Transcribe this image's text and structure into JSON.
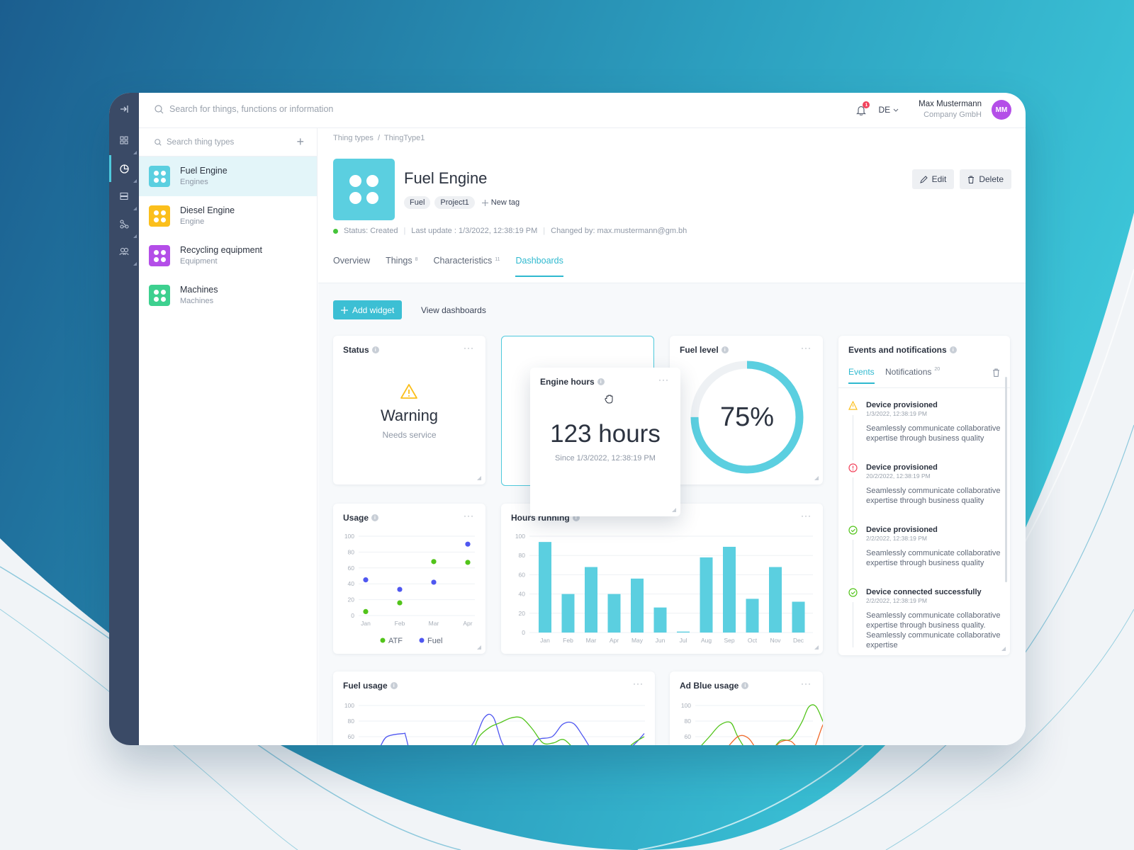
{
  "search": {
    "placeholder": "Search for things, functions or information"
  },
  "header": {
    "notification_count": "1",
    "language": "DE",
    "user_name": "Max Mustermann",
    "user_company": "Company GmbH",
    "user_initials": "MM"
  },
  "sidebar": {
    "search_placeholder": "Search thing types",
    "items": [
      {
        "name": "Fuel Engine",
        "sub": "Engines",
        "color": "#5bcfe0"
      },
      {
        "name": "Diesel Engine",
        "sub": "Engine",
        "color": "#fbbf1c"
      },
      {
        "name": "Recycling equipment",
        "sub": "Equipment",
        "color": "#b44ee8"
      },
      {
        "name": "Machines",
        "sub": "Machines",
        "color": "#3dd08f"
      }
    ]
  },
  "breadcrumb": {
    "root": "Thing types",
    "sep": "/",
    "current": "ThingType1"
  },
  "page": {
    "title": "Fuel Engine",
    "tags": [
      "Fuel",
      "Project1"
    ],
    "new_tag": "New tag",
    "status": "Status: Created",
    "last_update": "Last update : 1/3/2022, 12:38:19 PM",
    "changed_by": "Changed by: max.mustermann@gm.bh",
    "edit": "Edit",
    "delete": "Delete"
  },
  "tabs": [
    {
      "label": "Overview",
      "count": ""
    },
    {
      "label": "Things",
      "count": "8"
    },
    {
      "label": "Characteristics",
      "count": "11"
    },
    {
      "label": "Dashboards",
      "count": ""
    }
  ],
  "dash_actions": {
    "add_widget": "Add widget",
    "view_dashboards": "View dashboards"
  },
  "widgets": {
    "status": {
      "title": "Status",
      "value": "Warning",
      "sub": "Needs service"
    },
    "engine_hours": {
      "title": "Engine hours",
      "value": "123 hours",
      "sub": "Since 1/3/2022, 12:38:19 PM"
    },
    "fuel_level": {
      "title": "Fuel level",
      "value": "75%",
      "level": 0.75
    },
    "usage": {
      "title": "Usage"
    },
    "hours_running": {
      "title": "Hours running"
    },
    "fuel_usage": {
      "title": "Fuel usage"
    },
    "adblue_usage": {
      "title": "Ad Blue usage"
    }
  },
  "events": {
    "title": "Events and notifications",
    "tab_events": "Events",
    "tab_notifications": "Notifications",
    "notifications_count": "20",
    "items": [
      {
        "kind": "warning",
        "title": "Device provisioned",
        "date": "1/3/2022, 12:38:19 PM",
        "body": "Seamlessly communicate collaborative expertise through business quality"
      },
      {
        "kind": "error",
        "title": "Device provisioned",
        "date": "20/2/2022, 12:38:19 PM",
        "body": "Seamlessly communicate collaborative expertise through business quality"
      },
      {
        "kind": "success",
        "title": "Device provisioned",
        "date": "2/2/2022, 12:38:19 PM",
        "body": "Seamlessly communicate collaborative expertise through business quality"
      },
      {
        "kind": "success",
        "title": "Device connected successfully",
        "date": "2/2/2022, 12:38:19 PM",
        "body": "Seamlessly communicate collaborative expertise through business quality. Seamlessly communicate collaborative expertise"
      }
    ]
  },
  "chart_data": [
    {
      "type": "scatter",
      "title": "Usage",
      "categories": [
        "Jan",
        "Feb",
        "Mar",
        "Apr"
      ],
      "ylim": [
        0,
        100
      ],
      "yticks": [
        "0",
        "20",
        "40",
        "60",
        "80",
        "100"
      ],
      "series": [
        {
          "name": "ATF",
          "color": "#52c41a",
          "values": [
            5,
            16,
            68,
            67
          ]
        },
        {
          "name": "Fuel",
          "color": "#4f57f0",
          "values": [
            45,
            33,
            42,
            90
          ]
        }
      ]
    },
    {
      "type": "bar",
      "title": "Hours running",
      "categories": [
        "Jan",
        "Feb",
        "Mar",
        "Apr",
        "May",
        "Jun",
        "Jul",
        "Aug",
        "Sep",
        "Oct",
        "Nov",
        "Dec"
      ],
      "values": [
        94,
        40,
        68,
        40,
        56,
        26,
        1,
        78,
        89,
        35,
        68,
        32
      ],
      "ylim": [
        0,
        100
      ],
      "yticks": [
        "0",
        "20",
        "40",
        "60",
        "80",
        "100"
      ],
      "color": "#5bcfe0"
    },
    {
      "type": "line",
      "title": "Fuel usage",
      "ylim": [
        40,
        100
      ],
      "yticks": [
        "60",
        "80",
        "100"
      ],
      "series": [
        {
          "color": "#4f57f0",
          "x": [
            0,
            20,
            30,
            40,
            63,
            66,
            72,
            78,
            95,
            111,
            123,
            136,
            150,
            163,
            177,
            190,
            205,
            228,
            240,
            252,
            273,
            288,
            303,
            317,
            332,
            347,
            362,
            375,
            390,
            403
          ],
          "values": [
            40,
            40,
            47,
            60,
            64,
            62,
            42,
            40,
            40,
            40,
            40,
            40,
            40,
            54,
            84,
            85,
            48,
            40,
            40,
            56,
            60,
            76,
            77,
            60,
            40,
            40,
            40,
            40,
            51,
            64
          ]
        },
        {
          "color": "#52c41a",
          "x": [
            150,
            160,
            170,
            185,
            200,
            215,
            230,
            245,
            260,
            275,
            290,
            310,
            330,
            350,
            370,
            390,
            403
          ],
          "values": [
            40,
            40,
            60,
            72,
            78,
            84,
            84,
            70,
            52,
            52,
            56,
            40,
            40,
            40,
            40,
            53,
            60
          ]
        }
      ]
    },
    {
      "type": "line",
      "title": "Ad Blue usage",
      "ylim": [
        40,
        100
      ],
      "yticks": [
        "60",
        "80",
        "100"
      ],
      "series": [
        {
          "color": "#52c41a",
          "x": [
            0,
            20,
            35,
            50,
            60,
            75,
            90,
            105,
            120,
            135,
            150,
            160,
            170,
            180,
            190
          ],
          "values": [
            40,
            60,
            75,
            78,
            60,
            40,
            40,
            40,
            55,
            57,
            78,
            98,
            99,
            80,
            58
          ]
        },
        {
          "color": "#f06a2c",
          "x": [
            40,
            60,
            75,
            90,
            105,
            120,
            135,
            150,
            165,
            180,
            190
          ],
          "values": [
            40,
            60,
            58,
            40,
            40,
            53,
            54,
            40,
            40,
            75,
            86
          ]
        }
      ]
    }
  ]
}
